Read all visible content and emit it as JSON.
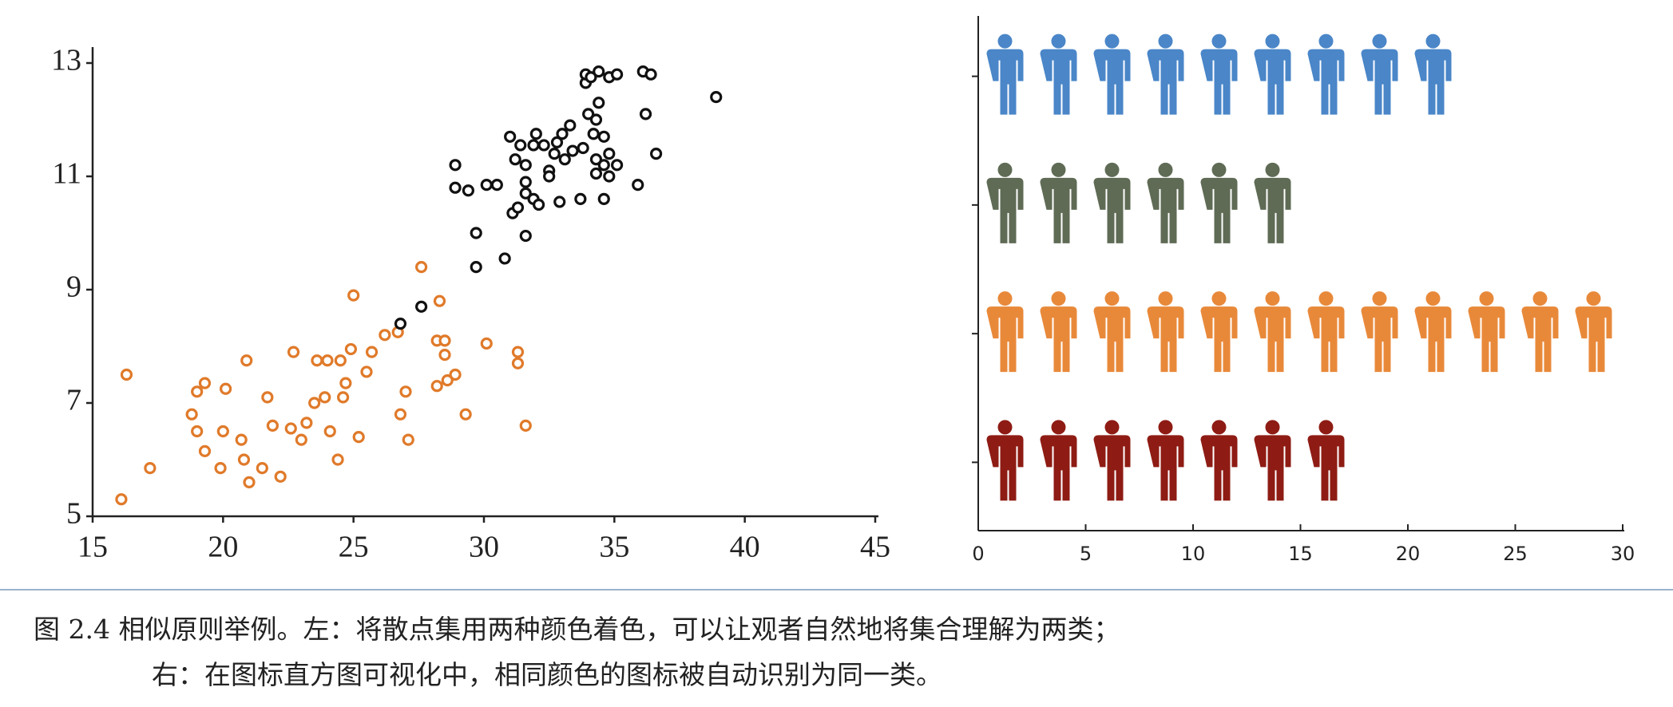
{
  "chart_data": [
    {
      "type": "scatter",
      "xlim": [
        15,
        45
      ],
      "ylim": [
        5,
        13
      ],
      "xticks": [
        15,
        20,
        25,
        30,
        35,
        40,
        45
      ],
      "yticks": [
        5,
        7,
        9,
        11,
        13
      ],
      "series": [
        {
          "color": "#e07a2a",
          "x": [
            16.3,
            16.1,
            17.2,
            18.8,
            19,
            19.3,
            19,
            19.3,
            19.9,
            20,
            20.1,
            20.7,
            20.8,
            20.9,
            21,
            21.5,
            21.7,
            21.9,
            22.2,
            22.6,
            22.7,
            23,
            23.2,
            23.5,
            23.6,
            23.9,
            24,
            24.1,
            24.4,
            24.5,
            24.6,
            24.7,
            24.9,
            25,
            25.2,
            25.5,
            25.7,
            26.2,
            26.7,
            26.8,
            27,
            27.1,
            27.6,
            28.2,
            28.2,
            28.3,
            28.5,
            28.5,
            28.6,
            28.9,
            29.3,
            30.1,
            31.3,
            31.3,
            31.6
          ],
          "y": [
            7.5,
            5.3,
            5.85,
            6.8,
            7.2,
            7.35,
            6.5,
            6.15,
            5.85,
            6.5,
            7.25,
            6.35,
            6,
            7.75,
            5.6,
            5.85,
            7.1,
            6.6,
            5.7,
            6.55,
            7.9,
            6.35,
            6.65,
            7,
            7.75,
            7.1,
            7.75,
            6.5,
            6,
            7.75,
            7.1,
            7.35,
            7.95,
            8.9,
            6.4,
            7.55,
            7.9,
            8.2,
            8.25,
            6.8,
            7.2,
            6.35,
            9.4,
            7.3,
            8.1,
            8.8,
            7.85,
            8.1,
            7.4,
            7.5,
            6.8,
            8.05,
            7.9,
            7.7,
            6.6
          ]
        },
        {
          "color": "#111111",
          "x": [
            26.8,
            27.6,
            28.9,
            28.9,
            29.4,
            29.7,
            29.7,
            30.1,
            30.5,
            30.8,
            31,
            31.1,
            31.2,
            31.3,
            31.4,
            31.6,
            31.6,
            31.6,
            31.6,
            31.9,
            31.9,
            32,
            32.1,
            32.3,
            32.5,
            32.5,
            32.7,
            32.8,
            32.9,
            33,
            33.1,
            33.3,
            33.4,
            33.7,
            33.8,
            33.9,
            33.9,
            34,
            34.1,
            34.2,
            34.3,
            34.3,
            34.3,
            34.4,
            34.4,
            34.6,
            34.6,
            34.6,
            34.8,
            34.8,
            34.8,
            35.1,
            35.1,
            35.9,
            36.1,
            36.2,
            36.4,
            36.6,
            38.9
          ],
          "y": [
            8.4,
            8.7,
            11.2,
            10.8,
            10.75,
            10,
            9.4,
            10.85,
            10.85,
            9.55,
            11.7,
            10.35,
            11.3,
            10.45,
            11.55,
            10.9,
            11.2,
            10.7,
            9.95,
            11.55,
            10.6,
            11.75,
            10.5,
            11.55,
            11.1,
            11,
            11.4,
            11.6,
            10.55,
            11.75,
            11.3,
            11.9,
            11.45,
            10.6,
            11.5,
            12.65,
            12.8,
            12.1,
            12.75,
            11.75,
            12,
            11.3,
            11.05,
            12.85,
            12.3,
            11.2,
            11.7,
            10.6,
            12.75,
            11.4,
            11,
            11.2,
            12.8,
            10.85,
            12.85,
            12.1,
            12.8,
            11.4,
            12.4
          ]
        }
      ]
    },
    {
      "type": "bar",
      "xlim": [
        0,
        30
      ],
      "xticks": [
        0,
        5,
        10,
        15,
        20,
        25,
        30
      ],
      "categories": [
        null,
        null,
        null,
        null
      ],
      "values": [
        22.5,
        15,
        30,
        17.5
      ],
      "colors": [
        "#4a86c8",
        "#5f6b55",
        "#e8893a",
        "#8e1c14"
      ]
    }
  ],
  "caption": [
    "图 2.4 相似原则举例。左：将散点集用两种颜色着色，可以让观者自然地将集合理解为两类；",
    "右：在图标直方图可视化中，相同颜色的图标被自动识别为同一类。"
  ]
}
